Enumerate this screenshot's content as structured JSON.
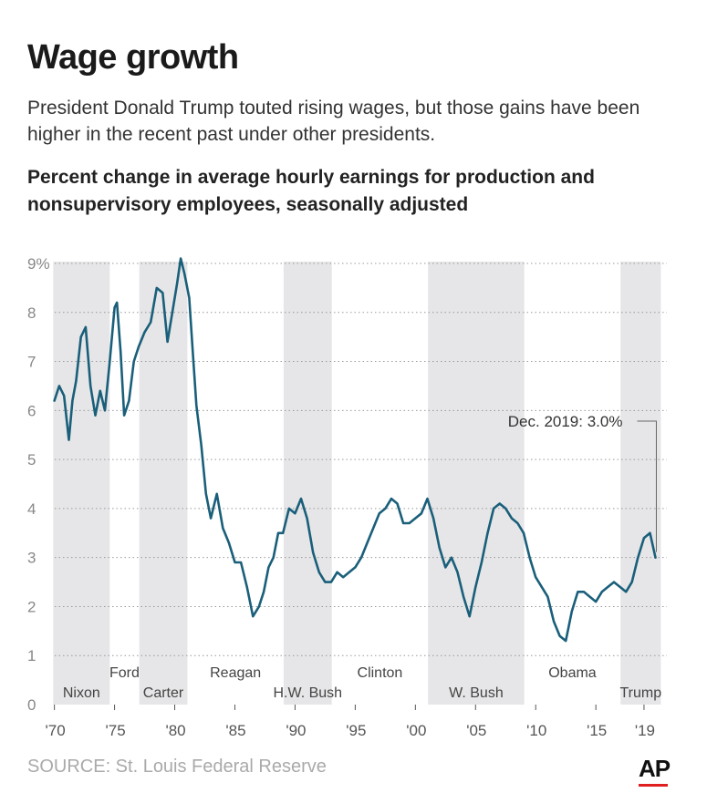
{
  "title": "Wage growth",
  "subtitle": "President Donald Trump touted rising wages, but those gains have been higher in the recent past under other presidents.",
  "source": "SOURCE: St. Louis Federal Reserve",
  "logo": "AP",
  "colors": {
    "line": "#1a5f7a",
    "band": "#e6e6e8",
    "grid": "#999999",
    "accent": "#e02020"
  },
  "chart_data": {
    "type": "line",
    "title": "Percent change in average hourly earnings for production and nonsupervisory employees, seasonally adjusted",
    "xlabel": "",
    "ylabel": "",
    "xlim": [
      1969.8,
      2020.9
    ],
    "ylim": [
      0,
      9
    ],
    "y_ticks": [
      {
        "value": 9,
        "label": "9%"
      },
      {
        "value": 8,
        "label": "8"
      },
      {
        "value": 7,
        "label": "7"
      },
      {
        "value": 6,
        "label": "6"
      },
      {
        "value": 5,
        "label": "5"
      },
      {
        "value": 4,
        "label": "4"
      },
      {
        "value": 3,
        "label": "3"
      },
      {
        "value": 2,
        "label": "2"
      },
      {
        "value": 1,
        "label": "1"
      },
      {
        "value": 0,
        "label": "0"
      }
    ],
    "x_ticks": [
      {
        "value": 1970,
        "label": "'70"
      },
      {
        "value": 1975,
        "label": "'75"
      },
      {
        "value": 1980,
        "label": "'80"
      },
      {
        "value": 1985,
        "label": "'85"
      },
      {
        "value": 1990,
        "label": "'90"
      },
      {
        "value": 1995,
        "label": "'95"
      },
      {
        "value": 2000,
        "label": "'00"
      },
      {
        "value": 2005,
        "label": "'05"
      },
      {
        "value": 2010,
        "label": "'10"
      },
      {
        "value": 2015,
        "label": "'15"
      },
      {
        "value": 2019,
        "label": "'19"
      }
    ],
    "presidents": [
      {
        "name": "Nixon",
        "start": 1969.9,
        "end": 1974.6,
        "shaded": true,
        "label_row": "low"
      },
      {
        "name": "Ford",
        "start": 1974.6,
        "end": 1977.05,
        "shaded": false,
        "label_row": "high"
      },
      {
        "name": "Carter",
        "start": 1977.05,
        "end": 1981.05,
        "shaded": true,
        "label_row": "low"
      },
      {
        "name": "Reagan",
        "start": 1981.05,
        "end": 1989.05,
        "shaded": false,
        "label_row": "high"
      },
      {
        "name": "H.W. Bush",
        "start": 1989.05,
        "end": 1993.05,
        "shaded": true,
        "label_row": "low"
      },
      {
        "name": "Clinton",
        "start": 1993.05,
        "end": 2001.05,
        "shaded": false,
        "label_row": "high"
      },
      {
        "name": "W. Bush",
        "start": 2001.05,
        "end": 2009.05,
        "shaded": true,
        "label_row": "low"
      },
      {
        "name": "Obama",
        "start": 2009.05,
        "end": 2017.05,
        "shaded": false,
        "label_row": "high"
      },
      {
        "name": "Trump",
        "start": 2017.05,
        "end": 2020.4,
        "shaded": true,
        "label_row": "low"
      }
    ],
    "annotation": {
      "text": "Dec. 2019: 3.0%",
      "x": 2019.95,
      "y": 3.0
    },
    "series": [
      {
        "name": "Average hourly earnings, % change",
        "x": [
          1970.0,
          1970.4,
          1970.8,
          1971.2,
          1971.5,
          1971.8,
          1972.2,
          1972.6,
          1973.0,
          1973.4,
          1973.8,
          1974.2,
          1974.6,
          1975.0,
          1975.2,
          1975.5,
          1975.8,
          1976.2,
          1976.6,
          1977.0,
          1977.5,
          1978.0,
          1978.5,
          1979.0,
          1979.4,
          1979.8,
          1980.2,
          1980.5,
          1980.8,
          1981.2,
          1981.5,
          1981.8,
          1982.2,
          1982.6,
          1983.0,
          1983.5,
          1984.0,
          1984.5,
          1985.0,
          1985.5,
          1986.0,
          1986.5,
          1987.0,
          1987.4,
          1987.8,
          1988.2,
          1988.6,
          1989.0,
          1989.5,
          1990.0,
          1990.5,
          1991.0,
          1991.5,
          1992.0,
          1992.5,
          1993.0,
          1993.5,
          1994.0,
          1994.5,
          1995.0,
          1995.5,
          1996.0,
          1996.5,
          1997.0,
          1997.5,
          1998.0,
          1998.5,
          1999.0,
          1999.5,
          2000.0,
          2000.5,
          2001.0,
          2001.5,
          2002.0,
          2002.5,
          2003.0,
          2003.5,
          2004.0,
          2004.5,
          2005.0,
          2005.5,
          2006.0,
          2006.5,
          2007.0,
          2007.5,
          2008.0,
          2008.5,
          2009.0,
          2009.5,
          2010.0,
          2010.5,
          2011.0,
          2011.5,
          2012.0,
          2012.5,
          2013.0,
          2013.5,
          2014.0,
          2014.5,
          2015.0,
          2015.5,
          2016.0,
          2016.5,
          2017.0,
          2017.5,
          2018.0,
          2018.5,
          2019.0,
          2019.5,
          2019.95
        ],
        "values": [
          6.2,
          6.5,
          6.3,
          5.4,
          6.2,
          6.6,
          7.5,
          7.7,
          6.5,
          5.9,
          6.4,
          6.0,
          7.0,
          8.1,
          8.2,
          7.2,
          5.9,
          6.2,
          7.0,
          7.3,
          7.6,
          7.8,
          8.5,
          8.4,
          7.4,
          8.0,
          8.6,
          9.1,
          8.8,
          8.3,
          7.2,
          6.1,
          5.3,
          4.3,
          3.8,
          4.3,
          3.6,
          3.3,
          2.9,
          2.9,
          2.4,
          1.8,
          2.0,
          2.3,
          2.8,
          3.0,
          3.5,
          3.5,
          4.0,
          3.9,
          4.2,
          3.8,
          3.1,
          2.7,
          2.5,
          2.5,
          2.7,
          2.6,
          2.7,
          2.8,
          3.0,
          3.3,
          3.6,
          3.9,
          4.0,
          4.2,
          4.1,
          3.7,
          3.7,
          3.8,
          3.9,
          4.2,
          3.8,
          3.2,
          2.8,
          3.0,
          2.7,
          2.2,
          1.8,
          2.4,
          2.9,
          3.5,
          4.0,
          4.1,
          4.0,
          3.8,
          3.7,
          3.5,
          3.0,
          2.6,
          2.4,
          2.2,
          1.7,
          1.4,
          1.3,
          1.9,
          2.3,
          2.3,
          2.2,
          2.1,
          2.3,
          2.4,
          2.5,
          2.4,
          2.3,
          2.5,
          3.0,
          3.4,
          3.5,
          3.0
        ]
      }
    ]
  }
}
